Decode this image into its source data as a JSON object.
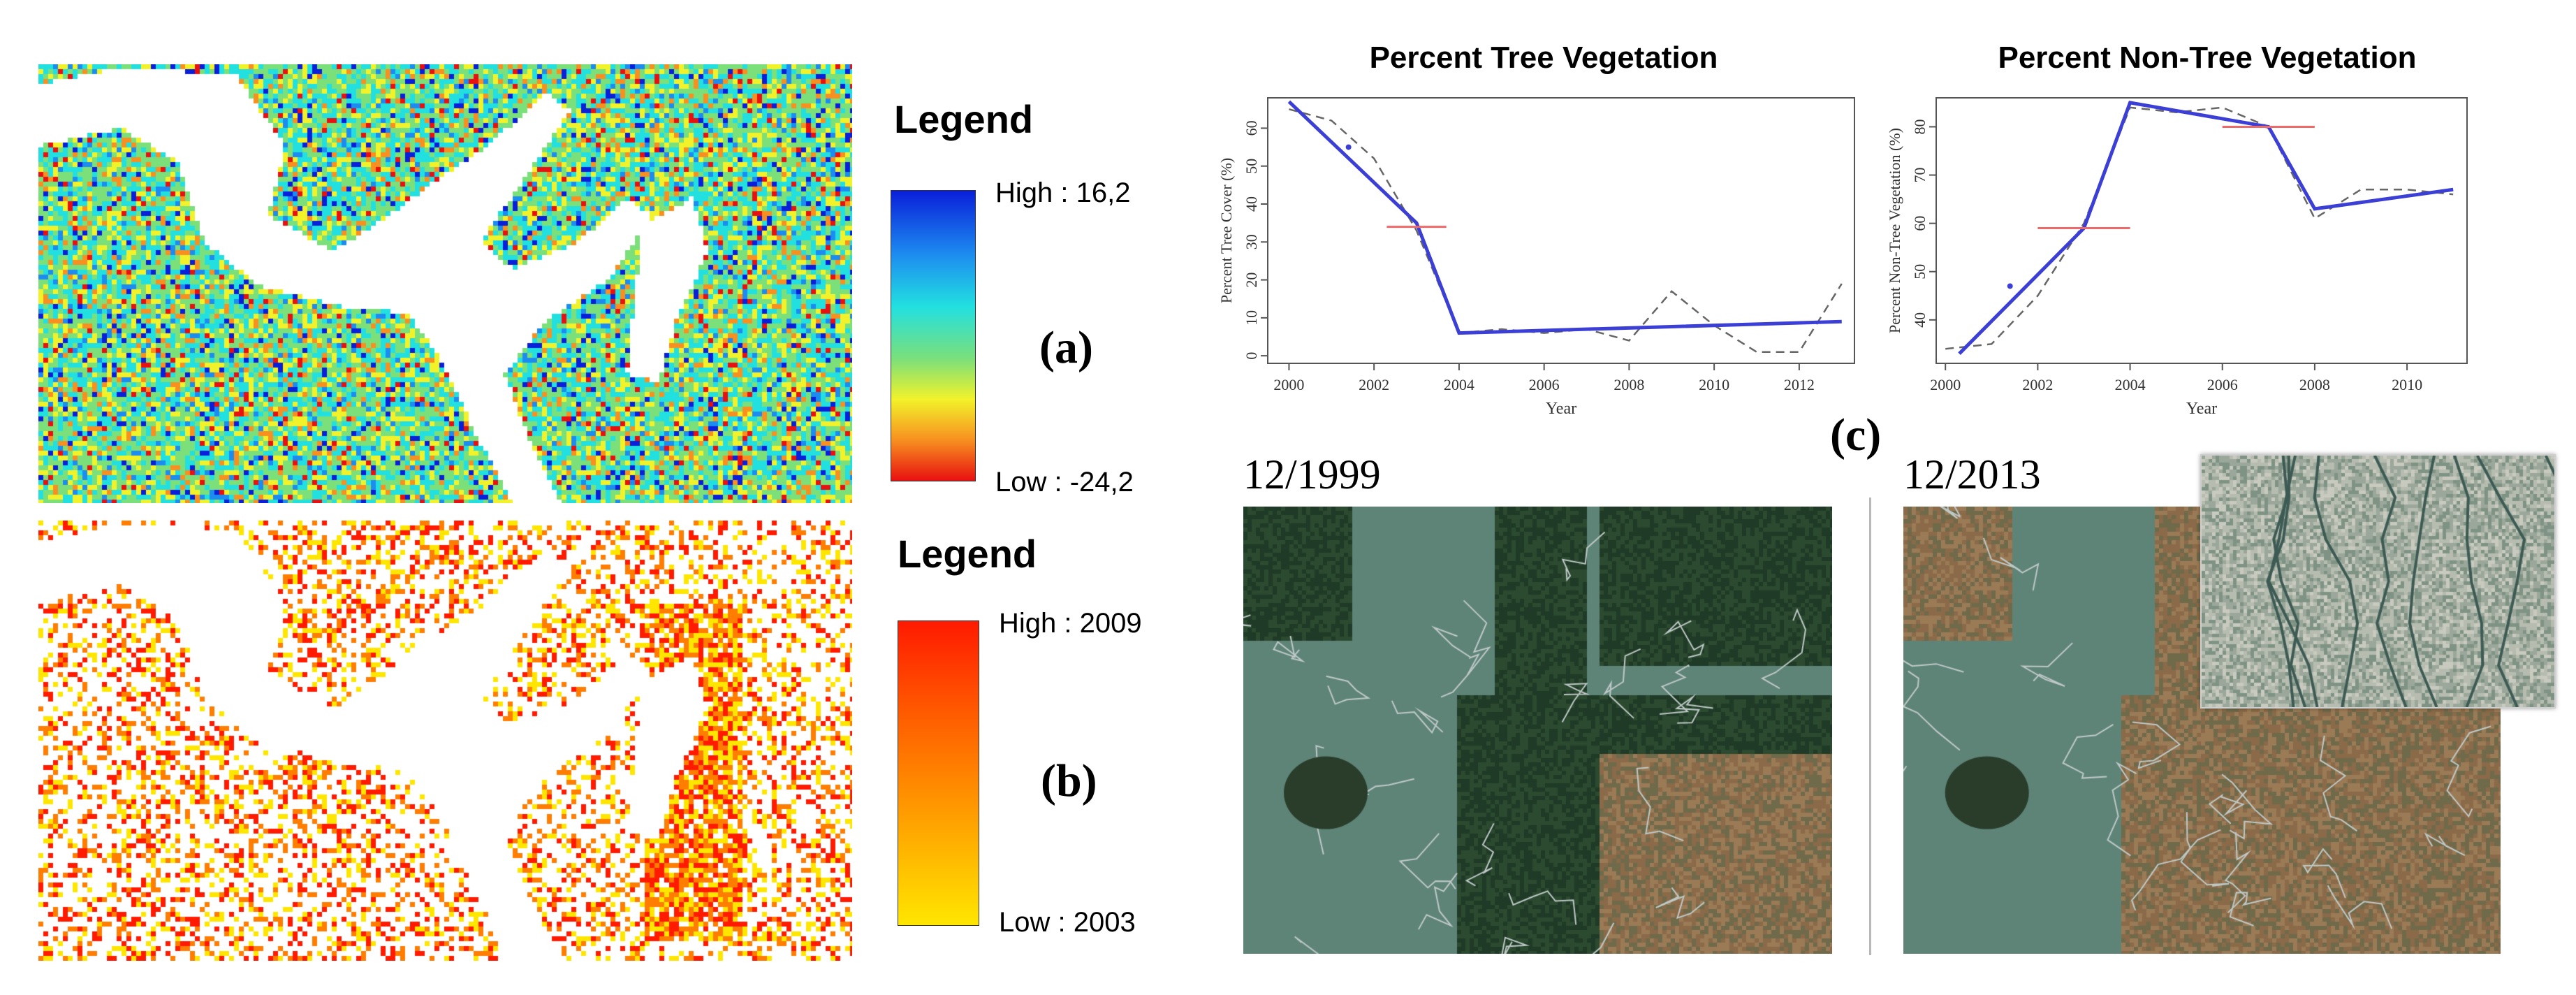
{
  "figure": {
    "panel_a": {
      "label": "(a)",
      "legend_title": "Legend",
      "high_label": "High : 16,2",
      "low_label": "Low : -24,2",
      "colors": [
        "#0a1fd9",
        "#1d8cf0",
        "#22e0e0",
        "#7be07a",
        "#f2f22a",
        "#f79020",
        "#e81010"
      ]
    },
    "panel_b": {
      "label": "(b)",
      "legend_title": "Legend",
      "high_label": "High : 2009",
      "low_label": "Low : 2003",
      "colors": [
        "#ff1a00",
        "#ff7d00",
        "#ffe600"
      ]
    },
    "panel_c": {
      "label": "(c)",
      "date_left": "12/1999",
      "date_right": "12/2013"
    }
  },
  "chart_data": [
    {
      "type": "line",
      "title": "Percent Tree Vegetation",
      "xlabel": "Year",
      "ylabel": "Percent Tree Cover (%)",
      "xlim": [
        1999.5,
        2013.3
      ],
      "ylim": [
        -2,
        68
      ],
      "xticks": [
        2000,
        2002,
        2004,
        2006,
        2008,
        2010,
        2012
      ],
      "yticks": [
        0,
        10,
        20,
        30,
        40,
        50,
        60
      ],
      "series": [
        {
          "name": "observed",
          "style": "dashed",
          "x": [
            2000,
            2001,
            2002,
            2003,
            2004,
            2005,
            2006,
            2007,
            2008,
            2009,
            2010,
            2011,
            2012,
            2013
          ],
          "y": [
            65,
            62,
            52,
            33,
            6,
            7,
            6,
            7,
            4,
            17,
            8,
            1,
            1,
            19
          ]
        },
        {
          "name": "fitted",
          "style": "solid",
          "x": [
            2000,
            2003,
            2004,
            2013
          ],
          "y": [
            67,
            35,
            6,
            9
          ]
        }
      ],
      "breakpoint": {
        "x": [
          2002.3,
          2003.7
        ],
        "y": 34
      },
      "outlier": {
        "x": 2001.4,
        "y": 55
      }
    },
    {
      "type": "line",
      "title": "Percent Non-Tree Vegetation",
      "xlabel": "Year",
      "ylabel": "Percent Non-Tree Vegetation (%)",
      "xlim": [
        1999.8,
        2011.3
      ],
      "ylim": [
        31,
        86
      ],
      "xticks": [
        2000,
        2002,
        2004,
        2006,
        2008,
        2010
      ],
      "yticks": [
        40,
        50,
        60,
        70,
        80
      ],
      "series": [
        {
          "name": "observed",
          "style": "dashed",
          "x": [
            2000,
            2001,
            2002,
            2003,
            2004,
            2005,
            2006,
            2007,
            2008,
            2009,
            2010,
            2011
          ],
          "y": [
            34,
            35,
            45,
            60,
            84,
            83,
            84,
            80,
            61,
            67,
            67,
            66
          ]
        },
        {
          "name": "fitted",
          "style": "solid",
          "x": [
            2000.3,
            2003,
            2004,
            2007,
            2008,
            2011
          ],
          "y": [
            33,
            59,
            85,
            80,
            63,
            67
          ]
        }
      ],
      "breakpoints": [
        {
          "x": [
            2002,
            2004
          ],
          "y": 59
        },
        {
          "x": [
            2006,
            2008
          ],
          "y": 80
        }
      ],
      "outlier": {
        "x": 2001.4,
        "y": 47
      }
    }
  ]
}
